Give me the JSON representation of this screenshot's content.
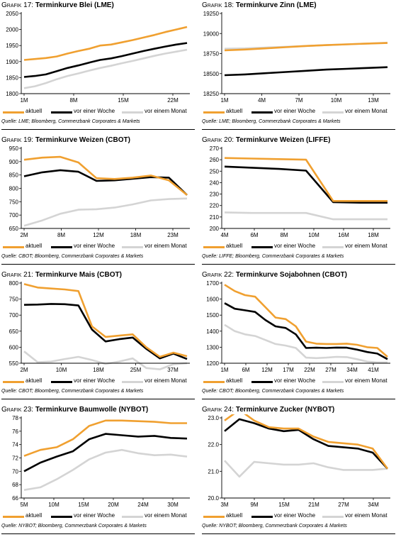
{
  "legend": {
    "aktuell": "aktuell",
    "woche": "vor einer Woche",
    "monat": "vor einem Monat"
  },
  "colors": {
    "aktuell": "#f0a030",
    "woche": "#000000",
    "monat": "#d4d4d4"
  },
  "panels": [
    {
      "prefix": "Grafik 17:",
      "title": "Terminkurve Blei (LME)",
      "source": "Quelle: LME; Bloomberg, Commerzbank Corporates & Markets",
      "chart_data": {
        "type": "line",
        "ylim": [
          1800,
          2050
        ],
        "yticks": [
          1800,
          1850,
          1900,
          1950,
          2000,
          2050
        ],
        "xticks": [
          "1M",
          "8M",
          "15M",
          "22M"
        ],
        "series": [
          {
            "name": "aktuell",
            "values": [
              1905,
              1908,
              1911,
              1916,
              1925,
              1933,
              1940,
              1950,
              1953,
              1960,
              1967,
              1975,
              1983,
              1992,
              2000,
              2008
            ]
          },
          {
            "name": "vor einer Woche",
            "values": [
              1852,
              1855,
              1860,
              1870,
              1880,
              1888,
              1897,
              1905,
              1910,
              1917,
              1925,
              1933,
              1940,
              1947,
              1953,
              1958
            ]
          },
          {
            "name": "vor einem Monat",
            "values": [
              1817,
              1823,
              1833,
              1845,
              1855,
              1863,
              1872,
              1880,
              1887,
              1895,
              1902,
              1910,
              1918,
              1925,
              1931,
              1937
            ]
          }
        ]
      }
    },
    {
      "prefix": "Grafik 18:",
      "title": "Terminkurve Zinn (LME)",
      "source": "Quelle: LME; Bloomberg, Commerzbank Corporates & Markets",
      "chart_data": {
        "type": "line",
        "ylim": [
          18250,
          19250
        ],
        "yticks": [
          18250,
          18500,
          18750,
          19000,
          19250
        ],
        "xticks": [
          "1M",
          "4M",
          "7M",
          "10M",
          "13M"
        ],
        "series": [
          {
            "name": "aktuell",
            "values": [
              18790,
              18800,
              18815,
              18830,
              18845,
              18855,
              18865,
              18875,
              18882
            ]
          },
          {
            "name": "vor einer Woche",
            "values": [
              18480,
              18490,
              18505,
              18520,
              18535,
              18550,
              18560,
              18570,
              18580
            ]
          },
          {
            "name": "vor einem Monat",
            "values": [
              18810,
              18815,
              18825,
              18835,
              18845,
              18855,
              18865,
              18875,
              18885
            ]
          }
        ]
      }
    },
    {
      "prefix": "Grafik 19:",
      "title": "Terminkurve Weizen (CBOT)",
      "source": "Quelle: CBOT; Bloomberg, Commerzbank Corporates & Markets",
      "chart_data": {
        "type": "line",
        "ylim": [
          650,
          950
        ],
        "yticks": [
          650,
          700,
          750,
          800,
          850,
          900,
          950
        ],
        "xticks": [
          "2M",
          "8M",
          "12M",
          "18M",
          "23M"
        ],
        "series": [
          {
            "name": "aktuell",
            "values": [
              907,
              915,
              918,
              897,
              838,
              835,
              840,
              848,
              830,
              775
            ]
          },
          {
            "name": "vor einer Woche",
            "values": [
              845,
              860,
              868,
              862,
              828,
              830,
              836,
              842,
              840,
              775
            ]
          },
          {
            "name": "vor einem Monat",
            "values": [
              660,
              680,
              705,
              720,
              722,
              728,
              740,
              755,
              760,
              762
            ]
          }
        ]
      }
    },
    {
      "prefix": "Grafik 20:",
      "title": "Terminkurve Weizen (LIFFE)",
      "source": "Quelle: LIFFE; Bloomberg, Commerzbank Corporates & Markets",
      "chart_data": {
        "type": "line",
        "ylim": [
          200,
          270
        ],
        "yticks": [
          200,
          210,
          220,
          230,
          240,
          250,
          260,
          270
        ],
        "xticks": [
          "4M",
          "6M",
          "8M",
          "10M",
          "16M",
          "18M"
        ],
        "series": [
          {
            "name": "aktuell",
            "values": [
              261.5,
              261,
              260.5,
              260,
              224,
              224,
              224
            ]
          },
          {
            "name": "vor einer Woche",
            "values": [
              254,
              253,
              252,
              250.5,
              223,
              222.5,
              222.5
            ]
          },
          {
            "name": "vor einem Monat",
            "values": [
              214,
              213.5,
              213.5,
              213.5,
              208,
              208,
              208
            ]
          }
        ]
      }
    },
    {
      "prefix": "Grafik 21:",
      "title": "Terminkurve Mais (CBOT)",
      "source": "Quelle: CBOT; Bloomberg, Commerzbank Corporates & Markets",
      "chart_data": {
        "type": "line",
        "ylim": [
          550,
          800
        ],
        "yticks": [
          550,
          600,
          650,
          700,
          750,
          800
        ],
        "xticks": [
          "2M",
          "10M",
          "18M",
          "25M",
          "37M"
        ],
        "series": [
          {
            "name": "aktuell",
            "values": [
              797,
              786,
              783,
              780,
              775,
              665,
              632,
              636,
              640,
              600,
              570,
              583,
              572
            ]
          },
          {
            "name": "vor einer Woche",
            "values": [
              732,
              733,
              735,
              734,
              730,
              655,
              618,
              625,
              630,
              595,
              565,
              580,
              563
            ]
          },
          {
            "name": "vor einem Monat",
            "values": [
              587,
              553,
              555,
              563,
              570,
              560,
              548,
              555,
              565,
              535,
              531,
              547,
              550
            ]
          }
        ]
      }
    },
    {
      "prefix": "Grafik 22:",
      "title": "Terminkurve Sojabohnen (CBOT)",
      "source": "Quelle: CBOT; Bloomberg, Commerzbank Corporates & Markets",
      "chart_data": {
        "type": "line",
        "ylim": [
          1200,
          1700
        ],
        "yticks": [
          1200,
          1300,
          1400,
          1500,
          1600,
          1700
        ],
        "xticks": [
          "1M",
          "6M",
          "12M",
          "17M",
          "22M",
          "27M",
          "34M",
          "41M"
        ],
        "series": [
          {
            "name": "aktuell",
            "values": [
              1690,
              1650,
              1625,
              1615,
              1550,
              1485,
              1475,
              1430,
              1335,
              1322,
              1320,
              1320,
              1322,
              1315,
              1300,
              1295,
              1240
            ]
          },
          {
            "name": "vor einer Woche",
            "values": [
              1575,
              1540,
              1530,
              1520,
              1470,
              1430,
              1420,
              1380,
              1295,
              1297,
              1295,
              1298,
              1297,
              1285,
              1270,
              1260,
              1225
            ]
          },
          {
            "name": "vor einem Monat",
            "values": [
              1440,
              1400,
              1380,
              1370,
              1345,
              1320,
              1310,
              1295,
              1235,
              1232,
              1235,
              1240,
              1238,
              1225,
              1210,
              1205,
              1205
            ]
          }
        ]
      }
    },
    {
      "prefix": "Grafik 23:",
      "title": "Terminkurve Baumwolle (NYBOT)",
      "source": "Quelle: NYBOT; Bloomberg, Commerzbank Corporates & Markets",
      "chart_data": {
        "type": "line",
        "ylim": [
          66,
          78
        ],
        "yticks": [
          66,
          68,
          70,
          72,
          74,
          76,
          78
        ],
        "xticks": [
          "5M",
          "10M",
          "15M",
          "20M",
          "24M",
          "30M"
        ],
        "series": [
          {
            "name": "aktuell",
            "values": [
              72.3,
              73.2,
              73.6,
              74.8,
              76.8,
              77.6,
              77.6,
              77.5,
              77.4,
              77.2,
              77.2
            ]
          },
          {
            "name": "vor einer Woche",
            "values": [
              70.0,
              71.3,
              72.2,
              73.0,
              74.8,
              75.6,
              75.4,
              75.2,
              75.3,
              75.0,
              74.9
            ]
          },
          {
            "name": "vor einem Monat",
            "values": [
              67.2,
              67.6,
              68.8,
              70.2,
              71.8,
              72.8,
              73.2,
              72.7,
              72.4,
              72.5,
              72.2
            ]
          }
        ]
      }
    },
    {
      "prefix": "Grafik 24:",
      "title": "Terminkurve Zucker (NYBOT)",
      "source": "Quelle: NYBOT; Bloomberg, Commerzbank Corporates & Markets",
      "chart_data": {
        "type": "line",
        "ylim": [
          20.0,
          23.0
        ],
        "yticks": [
          20.0,
          21.0,
          22.0,
          23.0
        ],
        "xticks": [
          "3M",
          "9M",
          "15M",
          "21M",
          "27M",
          "34M"
        ],
        "series": [
          {
            "name": "aktuell",
            "values": [
              22.9,
              23.3,
              22.9,
              22.65,
              22.6,
              22.6,
              22.3,
              22.1,
              22.05,
              22.0,
              21.85,
              21.1
            ]
          },
          {
            "name": "vor einer Woche",
            "values": [
              22.5,
              22.95,
              22.8,
              22.6,
              22.5,
              22.55,
              22.2,
              21.95,
              21.9,
              21.85,
              21.7,
              21.1
            ]
          },
          {
            "name": "vor einem Monat",
            "values": [
              21.4,
              20.8,
              21.35,
              21.3,
              21.25,
              21.25,
              21.3,
              21.15,
              21.05,
              21.05,
              21.05,
              21.1
            ]
          }
        ]
      }
    }
  ]
}
